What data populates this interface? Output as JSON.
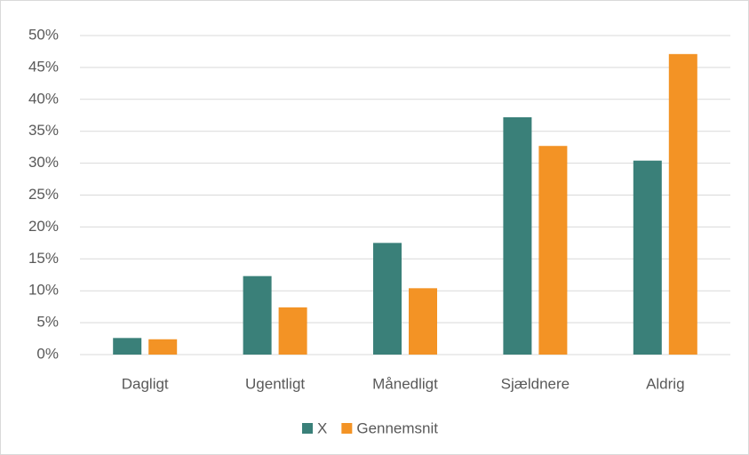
{
  "chart_data": {
    "type": "bar",
    "categories": [
      "Dagligt",
      "Ugentligt",
      "Månedligt",
      "Sjældnere",
      "Aldrig"
    ],
    "series": [
      {
        "name": "X",
        "color": "#3a8079",
        "values": [
          2.6,
          12.3,
          17.5,
          37.2,
          30.4
        ]
      },
      {
        "name": "Gennemsnit",
        "color": "#f39325",
        "values": [
          2.4,
          7.4,
          10.4,
          32.7,
          47.1
        ]
      }
    ],
    "ylim": [
      0,
      50
    ],
    "yticks": [
      {
        "value": 0,
        "label": "0%"
      },
      {
        "value": 5,
        "label": "5%"
      },
      {
        "value": 10,
        "label": "10%"
      },
      {
        "value": 15,
        "label": "15%"
      },
      {
        "value": 20,
        "label": "20%"
      },
      {
        "value": 25,
        "label": "25%"
      },
      {
        "value": 30,
        "label": "30%"
      },
      {
        "value": 35,
        "label": "35%"
      },
      {
        "value": 40,
        "label": "40%"
      },
      {
        "value": 45,
        "label": "45%"
      },
      {
        "value": 50,
        "label": "50%"
      }
    ],
    "grid": true,
    "legend": "bottom"
  }
}
